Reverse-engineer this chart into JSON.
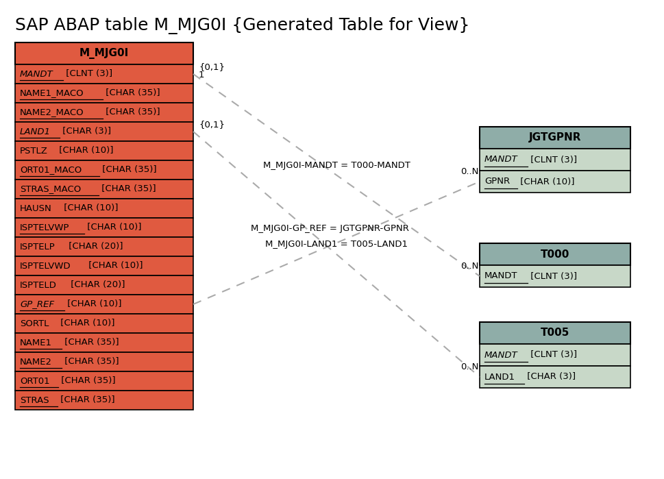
{
  "title": "SAP ABAP table M_MJG0I {Generated Table for View}",
  "bg_color": "#ffffff",
  "main_table": {
    "name": "M_MJG0I",
    "header_bg": "#e05a40",
    "row_bg": "#e05a40",
    "fields": [
      {
        "text": "MANDT",
        "type": " [CLNT (3)]",
        "italic": true,
        "underline": true
      },
      {
        "text": "NAME1_MACO",
        "type": " [CHAR (35)]",
        "italic": false,
        "underline": true
      },
      {
        "text": "NAME2_MACO",
        "type": " [CHAR (35)]",
        "italic": false,
        "underline": true
      },
      {
        "text": "LAND1",
        "type": " [CHAR (3)]",
        "italic": true,
        "underline": true
      },
      {
        "text": "PSTLZ",
        "type": " [CHAR (10)]",
        "italic": false,
        "underline": false
      },
      {
        "text": "ORT01_MACO",
        "type": " [CHAR (35)]",
        "italic": false,
        "underline": true
      },
      {
        "text": "STRAS_MACO",
        "type": " [CHAR (35)]",
        "italic": false,
        "underline": true
      },
      {
        "text": "HAUSN",
        "type": " [CHAR (10)]",
        "italic": false,
        "underline": false
      },
      {
        "text": "ISPTELVWP",
        "type": " [CHAR (10)]",
        "italic": false,
        "underline": true
      },
      {
        "text": "ISPTELP",
        "type": " [CHAR (20)]",
        "italic": false,
        "underline": false
      },
      {
        "text": "ISPTELVWD",
        "type": " [CHAR (10)]",
        "italic": false,
        "underline": false
      },
      {
        "text": "ISPTELD",
        "type": " [CHAR (20)]",
        "italic": false,
        "underline": false
      },
      {
        "text": "GP_REF",
        "type": " [CHAR (10)]",
        "italic": true,
        "underline": true
      },
      {
        "text": "SORTL",
        "type": " [CHAR (10)]",
        "italic": false,
        "underline": false
      },
      {
        "text": "NAME1",
        "type": " [CHAR (35)]",
        "italic": false,
        "underline": true
      },
      {
        "text": "NAME2",
        "type": " [CHAR (35)]",
        "italic": false,
        "underline": true
      },
      {
        "text": "ORT01",
        "type": " [CHAR (35)]",
        "italic": false,
        "underline": true
      },
      {
        "text": "STRAS",
        "type": " [CHAR (35)]",
        "italic": false,
        "underline": true
      }
    ]
  },
  "ref_tables": [
    {
      "name": "JGTGPNR",
      "header_bg": "#8fada8",
      "row_bg": "#c8d8c8",
      "fields": [
        {
          "text": "MANDT",
          "type": " [CLNT (3)]",
          "italic": true,
          "underline": true
        },
        {
          "text": "GPNR",
          "type": " [CHAR (10)]",
          "italic": false,
          "underline": true
        }
      ]
    },
    {
      "name": "T000",
      "header_bg": "#8fada8",
      "row_bg": "#c8d8c8",
      "fields": [
        {
          "text": "MANDT",
          "type": " [CLNT (3)]",
          "italic": false,
          "underline": true
        }
      ]
    },
    {
      "name": "T005",
      "header_bg": "#8fada8",
      "row_bg": "#c8d8c8",
      "fields": [
        {
          "text": "MANDT",
          "type": " [CLNT (3)]",
          "italic": true,
          "underline": true
        },
        {
          "text": "LAND1",
          "type": " [CHAR (3)]",
          "italic": false,
          "underline": true
        }
      ]
    }
  ]
}
